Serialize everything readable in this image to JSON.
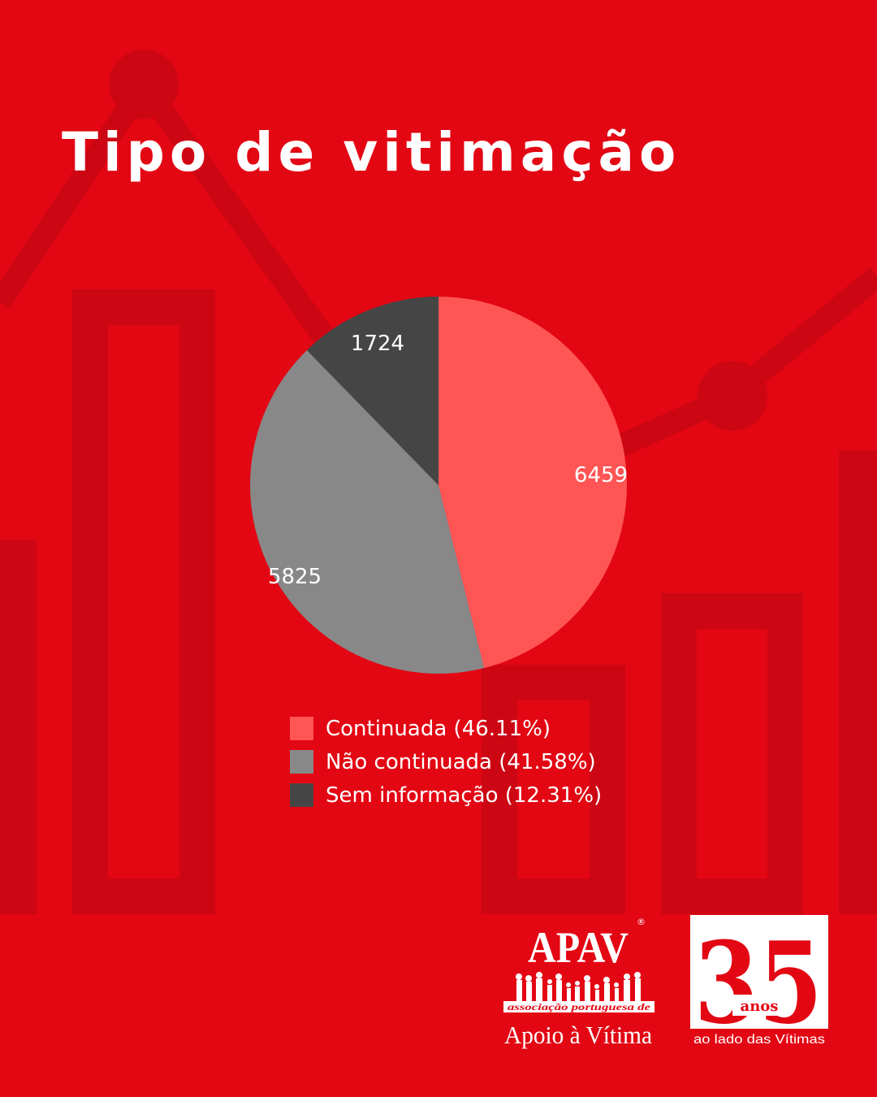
{
  "title": "Tipo de vitimação",
  "colors": {
    "background": "#e30613",
    "decor": "#cd0614"
  },
  "chart_data": {
    "type": "pie",
    "title": "Tipo de vitimação",
    "slices": [
      {
        "label": "Continuada (46.11%)",
        "value": 6459,
        "value_label": "6459",
        "color": "#ff5555"
      },
      {
        "label": "Não continuada (41.58%)",
        "value": 5825,
        "value_label": "5825",
        "color": "#888888"
      },
      {
        "label": "Sem informação (12.31%)",
        "value": 1724,
        "value_label": "1724",
        "color": "#454545"
      }
    ],
    "legend_position": "bottom"
  },
  "logos": {
    "apav": {
      "name": "APAV",
      "tagline": "associação portuguesa de",
      "subtitle": "Apoio à Vítima"
    },
    "anniversary": {
      "number": "35",
      "word": "anos",
      "caption": "ao lado das Vítimas"
    }
  }
}
